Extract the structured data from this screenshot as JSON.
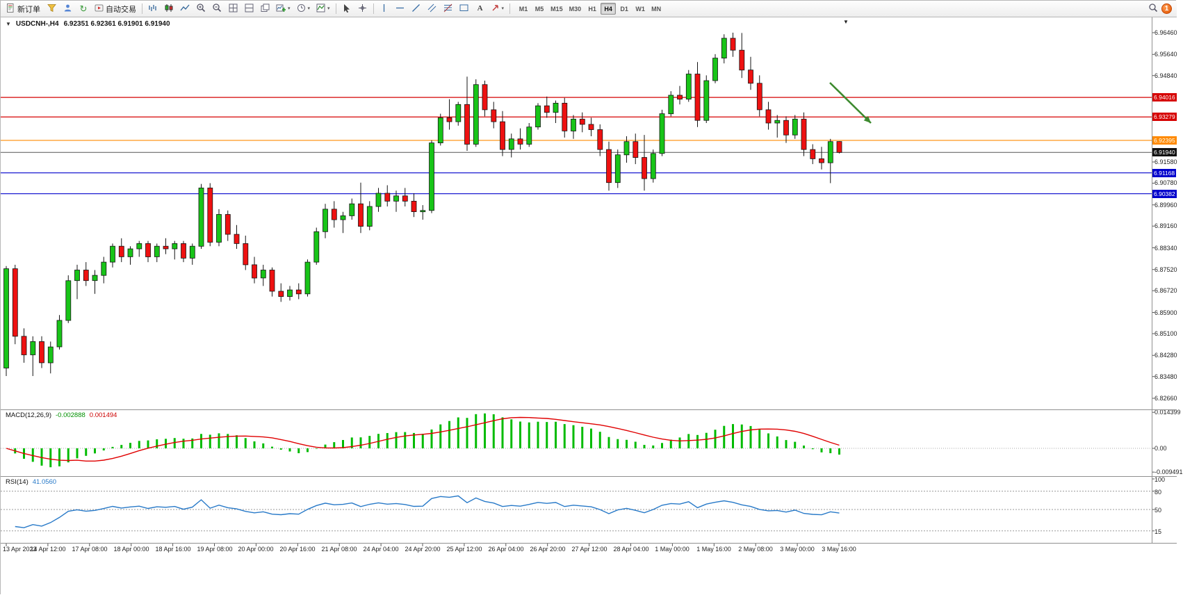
{
  "toolbar": {
    "new_order_label": "新订单",
    "autotrading_label": "自动交易",
    "timeframes": [
      "M1",
      "M5",
      "M15",
      "M30",
      "H1",
      "H4",
      "D1",
      "W1",
      "MN"
    ],
    "active_timeframe": "H4",
    "notification_count": "1"
  },
  "icons": {
    "dropdown_caret": "▾",
    "collapse_triangle": "▼",
    "shift_marker": "▼",
    "text_tool": "A",
    "refresh": "↻"
  },
  "chart": {
    "symbol_period": "USDCNH-,H4",
    "ohlc_text": "6.92351 6.92361 6.91901 6.91940"
  },
  "chart_data": {
    "type": "candlestick",
    "symbol": "USDCNH-",
    "period": "H4",
    "ohlc_current": {
      "open": "6.92351",
      "high": "6.92361",
      "low": "6.91901",
      "close": "6.91940"
    },
    "y_ticks": [
      "6.96460",
      "6.95640",
      "6.94840",
      "6.91580",
      "6.90780",
      "6.89960",
      "6.89160",
      "6.88340",
      "6.87520",
      "6.86720",
      "6.85900",
      "6.85100",
      "6.84280",
      "6.83480",
      "6.82660"
    ],
    "x_labels": [
      "13 Apr 2023",
      "14 Apr 12:00",
      "17 Apr 08:00",
      "18 Apr 00:00",
      "18 Apr 16:00",
      "19 Apr 08:00",
      "20 Apr 00:00",
      "20 Apr 16:00",
      "21 Apr 08:00",
      "24 Apr 04:00",
      "24 Apr 20:00",
      "25 Apr 12:00",
      "26 Apr 04:00",
      "26 Apr 20:00",
      "27 Apr 12:00",
      "28 Apr 04:00",
      "1 May 00:00",
      "1 May 16:00",
      "2 May 08:00",
      "3 May 00:00",
      "3 May 16:00"
    ],
    "levels": [
      {
        "price": 6.94016,
        "label": "6.94016",
        "color": "#d60000",
        "kind": "resistance"
      },
      {
        "price": 6.93279,
        "label": "6.93279",
        "color": "#d60000",
        "kind": "resistance"
      },
      {
        "price": 6.92395,
        "label": "6.92395",
        "color": "#ff8a00",
        "kind": "pivot"
      },
      {
        "price": 6.91168,
        "label": "6.91168",
        "color": "#0000cc",
        "kind": "support"
      },
      {
        "price": 6.90382,
        "label": "6.90382",
        "color": "#0000cc",
        "kind": "support"
      }
    ],
    "current_price": {
      "value": 6.9194,
      "label": "6.91940"
    },
    "candles": [
      [
        6.838,
        6.8765,
        6.835,
        6.8755
      ],
      [
        6.8755,
        6.877,
        6.847,
        6.85
      ],
      [
        6.85,
        6.853,
        6.84,
        6.843
      ],
      [
        6.843,
        6.85,
        6.835,
        6.848
      ],
      [
        6.848,
        6.85,
        6.838,
        6.84
      ],
      [
        6.84,
        6.848,
        6.836,
        6.846
      ],
      [
        6.846,
        6.858,
        6.845,
        6.856
      ],
      [
        6.856,
        6.873,
        6.855,
        6.871
      ],
      [
        6.871,
        6.877,
        6.864,
        6.875
      ],
      [
        6.875,
        6.878,
        6.869,
        6.871
      ],
      [
        6.871,
        6.875,
        6.866,
        6.873
      ],
      [
        6.873,
        6.88,
        6.87,
        6.878
      ],
      [
        6.878,
        6.885,
        6.876,
        6.884
      ],
      [
        6.884,
        6.887,
        6.878,
        6.88
      ],
      [
        6.88,
        6.884,
        6.877,
        6.883
      ],
      [
        6.883,
        6.886,
        6.88,
        6.885
      ],
      [
        6.885,
        6.886,
        6.878,
        6.88
      ],
      [
        6.88,
        6.885,
        6.878,
        6.884
      ],
      [
        6.884,
        6.887,
        6.881,
        6.883
      ],
      [
        6.883,
        6.886,
        6.879,
        6.885
      ],
      [
        6.885,
        6.886,
        6.878,
        6.8795
      ],
      [
        6.8795,
        6.885,
        6.877,
        6.884
      ],
      [
        6.884,
        6.9075,
        6.883,
        6.906
      ],
      [
        6.906,
        6.9078,
        6.884,
        6.8855
      ],
      [
        6.8855,
        6.898,
        6.884,
        6.896
      ],
      [
        6.896,
        6.8975,
        6.886,
        6.8885
      ],
      [
        6.8885,
        6.892,
        6.883,
        6.885
      ],
      [
        6.885,
        6.888,
        6.875,
        6.877
      ],
      [
        6.877,
        6.88,
        6.87,
        6.872
      ],
      [
        6.872,
        6.877,
        6.869,
        6.875
      ],
      [
        6.875,
        6.876,
        6.865,
        6.867
      ],
      [
        6.867,
        6.87,
        6.863,
        6.865
      ],
      [
        6.865,
        6.869,
        6.8635,
        6.8675
      ],
      [
        6.8675,
        6.87,
        6.864,
        6.866
      ],
      [
        6.866,
        6.879,
        6.865,
        6.878
      ],
      [
        6.878,
        6.891,
        6.877,
        6.8895
      ],
      [
        6.8895,
        6.9,
        6.887,
        6.898
      ],
      [
        6.898,
        6.901,
        6.891,
        6.894
      ],
      [
        6.894,
        6.897,
        6.889,
        6.8955
      ],
      [
        6.8955,
        6.902,
        6.894,
        6.9
      ],
      [
        6.9,
        6.908,
        6.889,
        6.8915
      ],
      [
        6.8915,
        6.901,
        6.89,
        6.899
      ],
      [
        6.899,
        6.906,
        6.897,
        6.904
      ],
      [
        6.904,
        6.907,
        6.899,
        6.901
      ],
      [
        6.901,
        6.905,
        6.897,
        6.903
      ],
      [
        6.903,
        6.906,
        6.899,
        6.901
      ],
      [
        6.901,
        6.904,
        6.895,
        6.897
      ],
      [
        6.897,
        6.8995,
        6.894,
        6.8975
      ],
      [
        6.8975,
        6.924,
        6.8965,
        6.923
      ],
      [
        6.923,
        6.934,
        6.922,
        6.9325
      ],
      [
        6.9325,
        6.9395,
        6.928,
        6.931
      ],
      [
        6.931,
        6.9385,
        6.9295,
        6.9375
      ],
      [
        6.9375,
        6.948,
        6.92,
        6.9225
      ],
      [
        6.9225,
        6.947,
        6.9215,
        6.945
      ],
      [
        6.945,
        6.9465,
        6.933,
        6.9355
      ],
      [
        6.9355,
        6.9385,
        6.9285,
        6.931
      ],
      [
        6.931,
        6.935,
        6.918,
        6.9205
      ],
      [
        6.9205,
        6.9265,
        6.9175,
        6.9245
      ],
      [
        6.9245,
        6.9285,
        6.9205,
        6.9225
      ],
      [
        6.9225,
        6.9305,
        6.9215,
        6.929
      ],
      [
        6.929,
        6.938,
        6.928,
        6.937
      ],
      [
        6.937,
        6.9405,
        6.9325,
        6.9345
      ],
      [
        6.9345,
        6.939,
        6.9305,
        6.938
      ],
      [
        6.938,
        6.94,
        6.925,
        6.9275
      ],
      [
        6.9275,
        6.9335,
        6.9245,
        6.932
      ],
      [
        6.932,
        6.9345,
        6.927,
        6.93
      ],
      [
        6.93,
        6.9325,
        6.9255,
        6.928
      ],
      [
        6.928,
        6.93,
        6.918,
        6.9205
      ],
      [
        6.9205,
        6.9235,
        6.905,
        6.908
      ],
      [
        6.908,
        6.9205,
        6.906,
        6.9185
      ],
      [
        6.9185,
        6.9255,
        6.9155,
        6.9235
      ],
      [
        6.9235,
        6.9265,
        6.915,
        6.9175
      ],
      [
        6.9175,
        6.926,
        6.905,
        6.9095
      ],
      [
        6.9095,
        6.9205,
        6.908,
        6.919
      ],
      [
        6.919,
        6.9355,
        6.918,
        6.934
      ],
      [
        6.934,
        6.9425,
        6.933,
        6.941
      ],
      [
        6.941,
        6.9445,
        6.9375,
        6.9395
      ],
      [
        6.9395,
        6.9505,
        6.9385,
        6.949
      ],
      [
        6.949,
        6.9535,
        6.929,
        6.9315
      ],
      [
        6.9315,
        6.9485,
        6.9305,
        6.9465
      ],
      [
        6.9465,
        6.9565,
        6.9455,
        6.955
      ],
      [
        6.955,
        6.964,
        6.953,
        6.9625
      ],
      [
        6.9625,
        6.9646,
        6.9555,
        6.958
      ],
      [
        6.958,
        6.9645,
        6.9475,
        6.9505
      ],
      [
        6.9505,
        6.9555,
        6.943,
        6.9455
      ],
      [
        6.9455,
        6.9485,
        6.933,
        6.9355
      ],
      [
        6.9355,
        6.9385,
        6.928,
        6.9305
      ],
      [
        6.9305,
        6.9335,
        6.925,
        6.9315
      ],
      [
        6.9315,
        6.933,
        6.923,
        6.926
      ],
      [
        6.926,
        6.9335,
        6.9245,
        6.932
      ],
      [
        6.932,
        6.9345,
        6.918,
        6.9205
      ],
      [
        6.9205,
        6.9225,
        6.915,
        6.917
      ],
      [
        6.917,
        6.9215,
        6.913,
        6.9155
      ],
      [
        6.9155,
        6.9245,
        6.9078,
        6.9235
      ],
      [
        6.92351,
        6.92361,
        6.91901,
        6.9194
      ]
    ],
    "indicators": {
      "macd": {
        "name": "MACD(12,26,9)",
        "main_value": "-0.002888",
        "signal_value": "0.001494",
        "fast": 12,
        "slow": 26,
        "signal": 9,
        "y_ticks": [
          "0.014399",
          "0.00",
          "-0.009491"
        ],
        "histogram_color": "#00bb00",
        "signal_color": "#e00000"
      },
      "rsi": {
        "name": "RSI(14)",
        "value": "41.0560",
        "period": 14,
        "y_ticks": [
          "100",
          "80",
          "50",
          "15"
        ],
        "levels": [
          80,
          50,
          15
        ],
        "line_color": "#2779c8"
      }
    },
    "annotation_arrow": {
      "color": "#3c8a2e",
      "from": [
        1193,
        118
      ],
      "to": [
        1252,
        176
      ]
    },
    "colors": {
      "bull": "#18c418",
      "bear": "#ee1111",
      "outline": "#141414",
      "bid_line": "#555555",
      "bid_tag_bg": "#111111"
    }
  }
}
